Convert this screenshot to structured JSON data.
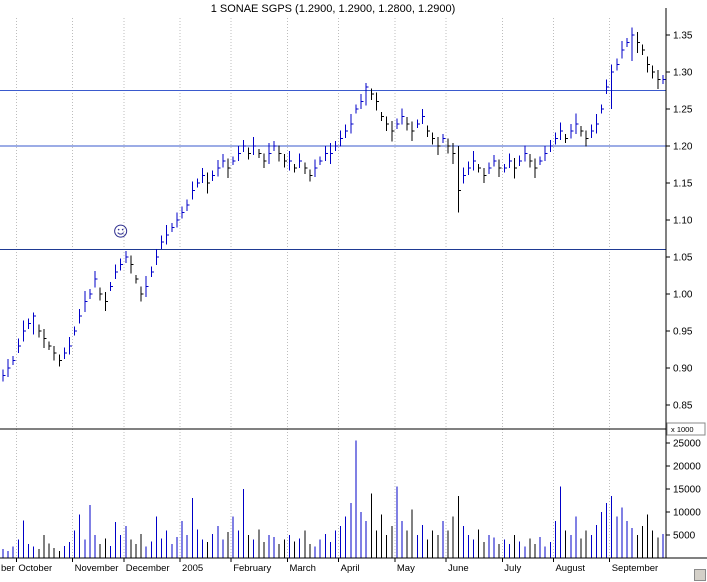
{
  "title": "1 SONAE SGPS (1.2900, 1.2900, 1.2800, 1.2900)",
  "colors": {
    "up": "#0000c8",
    "down": "#000000",
    "grid": "#bdbdbd",
    "axis": "#000000",
    "hline_blue": "#3a5acd",
    "hline_dark": "#1f3a93",
    "annotation": "#2f2f8f",
    "background": "#ffffff"
  },
  "chart_data": {
    "type": "ohlc",
    "title": "1 SONAE SGPS (1.2900, 1.2900, 1.2800, 1.2900)",
    "symbol": "SONAE SGPS",
    "quote": {
      "open": "1.2900",
      "high": "1.2900",
      "low": "1.2800",
      "close": "1.2900"
    },
    "legend_position": "top-center",
    "grid": "vertical-dashed-monthly",
    "months": [
      {
        "label": "ber",
        "index": 0
      },
      {
        "label": "October",
        "index": 3
      },
      {
        "label": "November",
        "index": 14
      },
      {
        "label": "December",
        "index": 24
      },
      {
        "label": "2005",
        "index": 35
      },
      {
        "label": "February",
        "index": 45
      },
      {
        "label": "March",
        "index": 56
      },
      {
        "label": "April",
        "index": 66
      },
      {
        "label": "May",
        "index": 77
      },
      {
        "label": "June",
        "index": 87
      },
      {
        "label": "July",
        "index": 98
      },
      {
        "label": "August",
        "index": 108
      },
      {
        "label": "September",
        "index": 119
      }
    ],
    "price_axis": {
      "ticks": [
        1.35,
        1.3,
        1.25,
        1.2,
        1.15,
        1.1,
        1.05,
        1.0,
        0.95,
        0.9,
        0.85
      ],
      "range": [
        0.85,
        1.35
      ]
    },
    "volume_axis": {
      "ticks": [
        25000,
        20000,
        15000,
        10000,
        5000
      ],
      "unit_label": "x 1000",
      "range": [
        0,
        27000
      ]
    },
    "hlines": [
      {
        "value": 1.275,
        "color_key": "hline_blue"
      },
      {
        "value": 1.2,
        "color_key": "hline_blue"
      },
      {
        "value": 1.06,
        "color_key": "hline_dark"
      }
    ],
    "closes": [
      0.89,
      0.9,
      0.91,
      0.93,
      0.95,
      0.96,
      0.97,
      0.95,
      0.94,
      0.93,
      0.92,
      0.91,
      0.92,
      0.93,
      0.95,
      0.97,
      0.99,
      1.0,
      1.02,
      1.0,
      0.99,
      1.01,
      1.03,
      1.04,
      1.05,
      1.04,
      1.02,
      1.0,
      1.01,
      1.03,
      1.05,
      1.07,
      1.08,
      1.09,
      1.1,
      1.11,
      1.12,
      1.14,
      1.15,
      1.16,
      1.15,
      1.16,
      1.17,
      1.18,
      1.17,
      1.18,
      1.19,
      1.2,
      1.19,
      1.2,
      1.19,
      1.18,
      1.19,
      1.2,
      1.19,
      1.18,
      1.18,
      1.17,
      1.18,
      1.17,
      1.16,
      1.17,
      1.18,
      1.19,
      1.19,
      1.2,
      1.21,
      1.22,
      1.23,
      1.25,
      1.26,
      1.28,
      1.27,
      1.26,
      1.24,
      1.23,
      1.22,
      1.23,
      1.24,
      1.23,
      1.22,
      1.23,
      1.24,
      1.22,
      1.21,
      1.2,
      1.21,
      1.2,
      1.19,
      1.14,
      1.16,
      1.17,
      1.18,
      1.17,
      1.16,
      1.17,
      1.18,
      1.17,
      1.17,
      1.18,
      1.17,
      1.18,
      1.19,
      1.18,
      1.17,
      1.18,
      1.19,
      1.2,
      1.21,
      1.22,
      1.21,
      1.22,
      1.23,
      1.22,
      1.21,
      1.22,
      1.23,
      1.25,
      1.28,
      1.3,
      1.31,
      1.33,
      1.34,
      1.35,
      1.34,
      1.33,
      1.31,
      1.3,
      1.29,
      1.29
    ],
    "volumes": [
      2000,
      1500,
      2500,
      4000,
      8200,
      3000,
      2500,
      2000,
      5000,
      3200,
      2200,
      1500,
      2600,
      3500,
      6000,
      9500,
      4000,
      11500,
      5000,
      3000,
      4200,
      2600,
      7800,
      5000,
      7000,
      4000,
      3000,
      5200,
      2500,
      3600,
      9000,
      4200,
      6000,
      3000,
      4600,
      8000,
      5000,
      13000,
      6200,
      4000,
      3500,
      5200,
      7000,
      4000,
      5600,
      9000,
      6000,
      15000,
      5000,
      4000,
      6200,
      3500,
      5000,
      4600,
      3000,
      4000,
      5000,
      3600,
      4200,
      6000,
      3000,
      2500,
      4000,
      5200,
      3500,
      6000,
      7000,
      9000,
      12000,
      25500,
      10000,
      8000,
      14000,
      6000,
      9500,
      5000,
      7000,
      15500,
      8000,
      6000,
      10500,
      5000,
      7200,
      4000,
      6000,
      5000,
      8000,
      6000,
      9000,
      13500,
      7000,
      5000,
      4000,
      6200,
      3500,
      5000,
      4500,
      3000,
      4000,
      3000,
      5000,
      3600,
      2500,
      4200,
      3000,
      4600,
      2500,
      3500,
      8000,
      15500,
      6000,
      5000,
      9000,
      4200,
      6000,
      5000,
      7200,
      10000,
      12000,
      13500,
      9000,
      11000,
      8000,
      6500,
      5000,
      7000,
      9500,
      6000,
      4500,
      5200
    ],
    "range_cycle": [
      0.008,
      0.012,
      0.006,
      0.01,
      0.014,
      0.007,
      0.011,
      0.009,
      0.013,
      0.006,
      0.01,
      0.008
    ],
    "bar_overrides": {
      "6": [
        0.975,
        0.945
      ],
      "71": [
        1.285,
        1.255
      ],
      "89": [
        1.2,
        1.11
      ],
      "119": [
        1.31,
        1.25
      ],
      "123": [
        1.36,
        1.315
      ]
    },
    "annotation": {
      "type": "smiley-face-circle",
      "index": 23,
      "price": 1.085
    }
  }
}
